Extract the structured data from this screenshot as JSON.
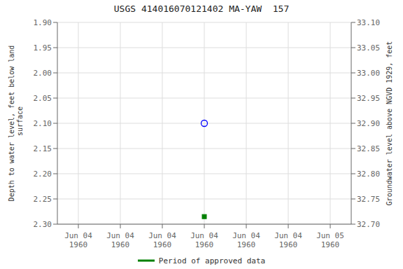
{
  "chart_data": {
    "type": "scatter",
    "title": "USGS 414016070121402 MA-YAW  157",
    "categories": [
      "Jun 04\n1960",
      "Jun 04\n1960",
      "Jun 04\n1960",
      "Jun 04\n1960",
      "Jun 04\n1960",
      "Jun 04\n1960",
      "Jun 05\n1960"
    ],
    "ylabel": "Depth to water level, feet below land\n surface",
    "y2label": "Groundwater level above NGVD 1929, feet",
    "ylim": [
      2.3,
      1.9
    ],
    "yticks": [
      {
        "value": 1.9,
        "label": "1.90"
      },
      {
        "value": 1.95,
        "label": "1.95"
      },
      {
        "value": 2.0,
        "label": "2.00"
      },
      {
        "value": 2.05,
        "label": "2.05"
      },
      {
        "value": 2.1,
        "label": "2.10"
      },
      {
        "value": 2.15,
        "label": "2.15"
      },
      {
        "value": 2.2,
        "label": "2.20"
      },
      {
        "value": 2.25,
        "label": "2.25"
      },
      {
        "value": 2.3,
        "label": "2.30"
      }
    ],
    "y2lim": [
      32.7,
      33.1
    ],
    "y2ticks": [
      {
        "value": 32.7,
        "label": "32.70"
      },
      {
        "value": 32.75,
        "label": "32.75"
      },
      {
        "value": 32.8,
        "label": "32.80"
      },
      {
        "value": 32.85,
        "label": "32.85"
      },
      {
        "value": 32.9,
        "label": "32.90"
      },
      {
        "value": 32.95,
        "label": "32.95"
      },
      {
        "value": 33.0,
        "label": "33.00"
      },
      {
        "value": 33.05,
        "label": "33.05"
      },
      {
        "value": 33.1,
        "label": "33.10"
      }
    ],
    "series": [
      {
        "values": [
          null,
          null,
          null,
          2.1,
          null,
          null,
          null
        ],
        "color": "blue",
        "marker": "circle"
      },
      {
        "name": "Period of approved data",
        "values": [
          null,
          null,
          null,
          2.285,
          null,
          null,
          null
        ],
        "color": "#008000",
        "marker": "square"
      }
    ],
    "grid": true,
    "legend": "bottom"
  }
}
